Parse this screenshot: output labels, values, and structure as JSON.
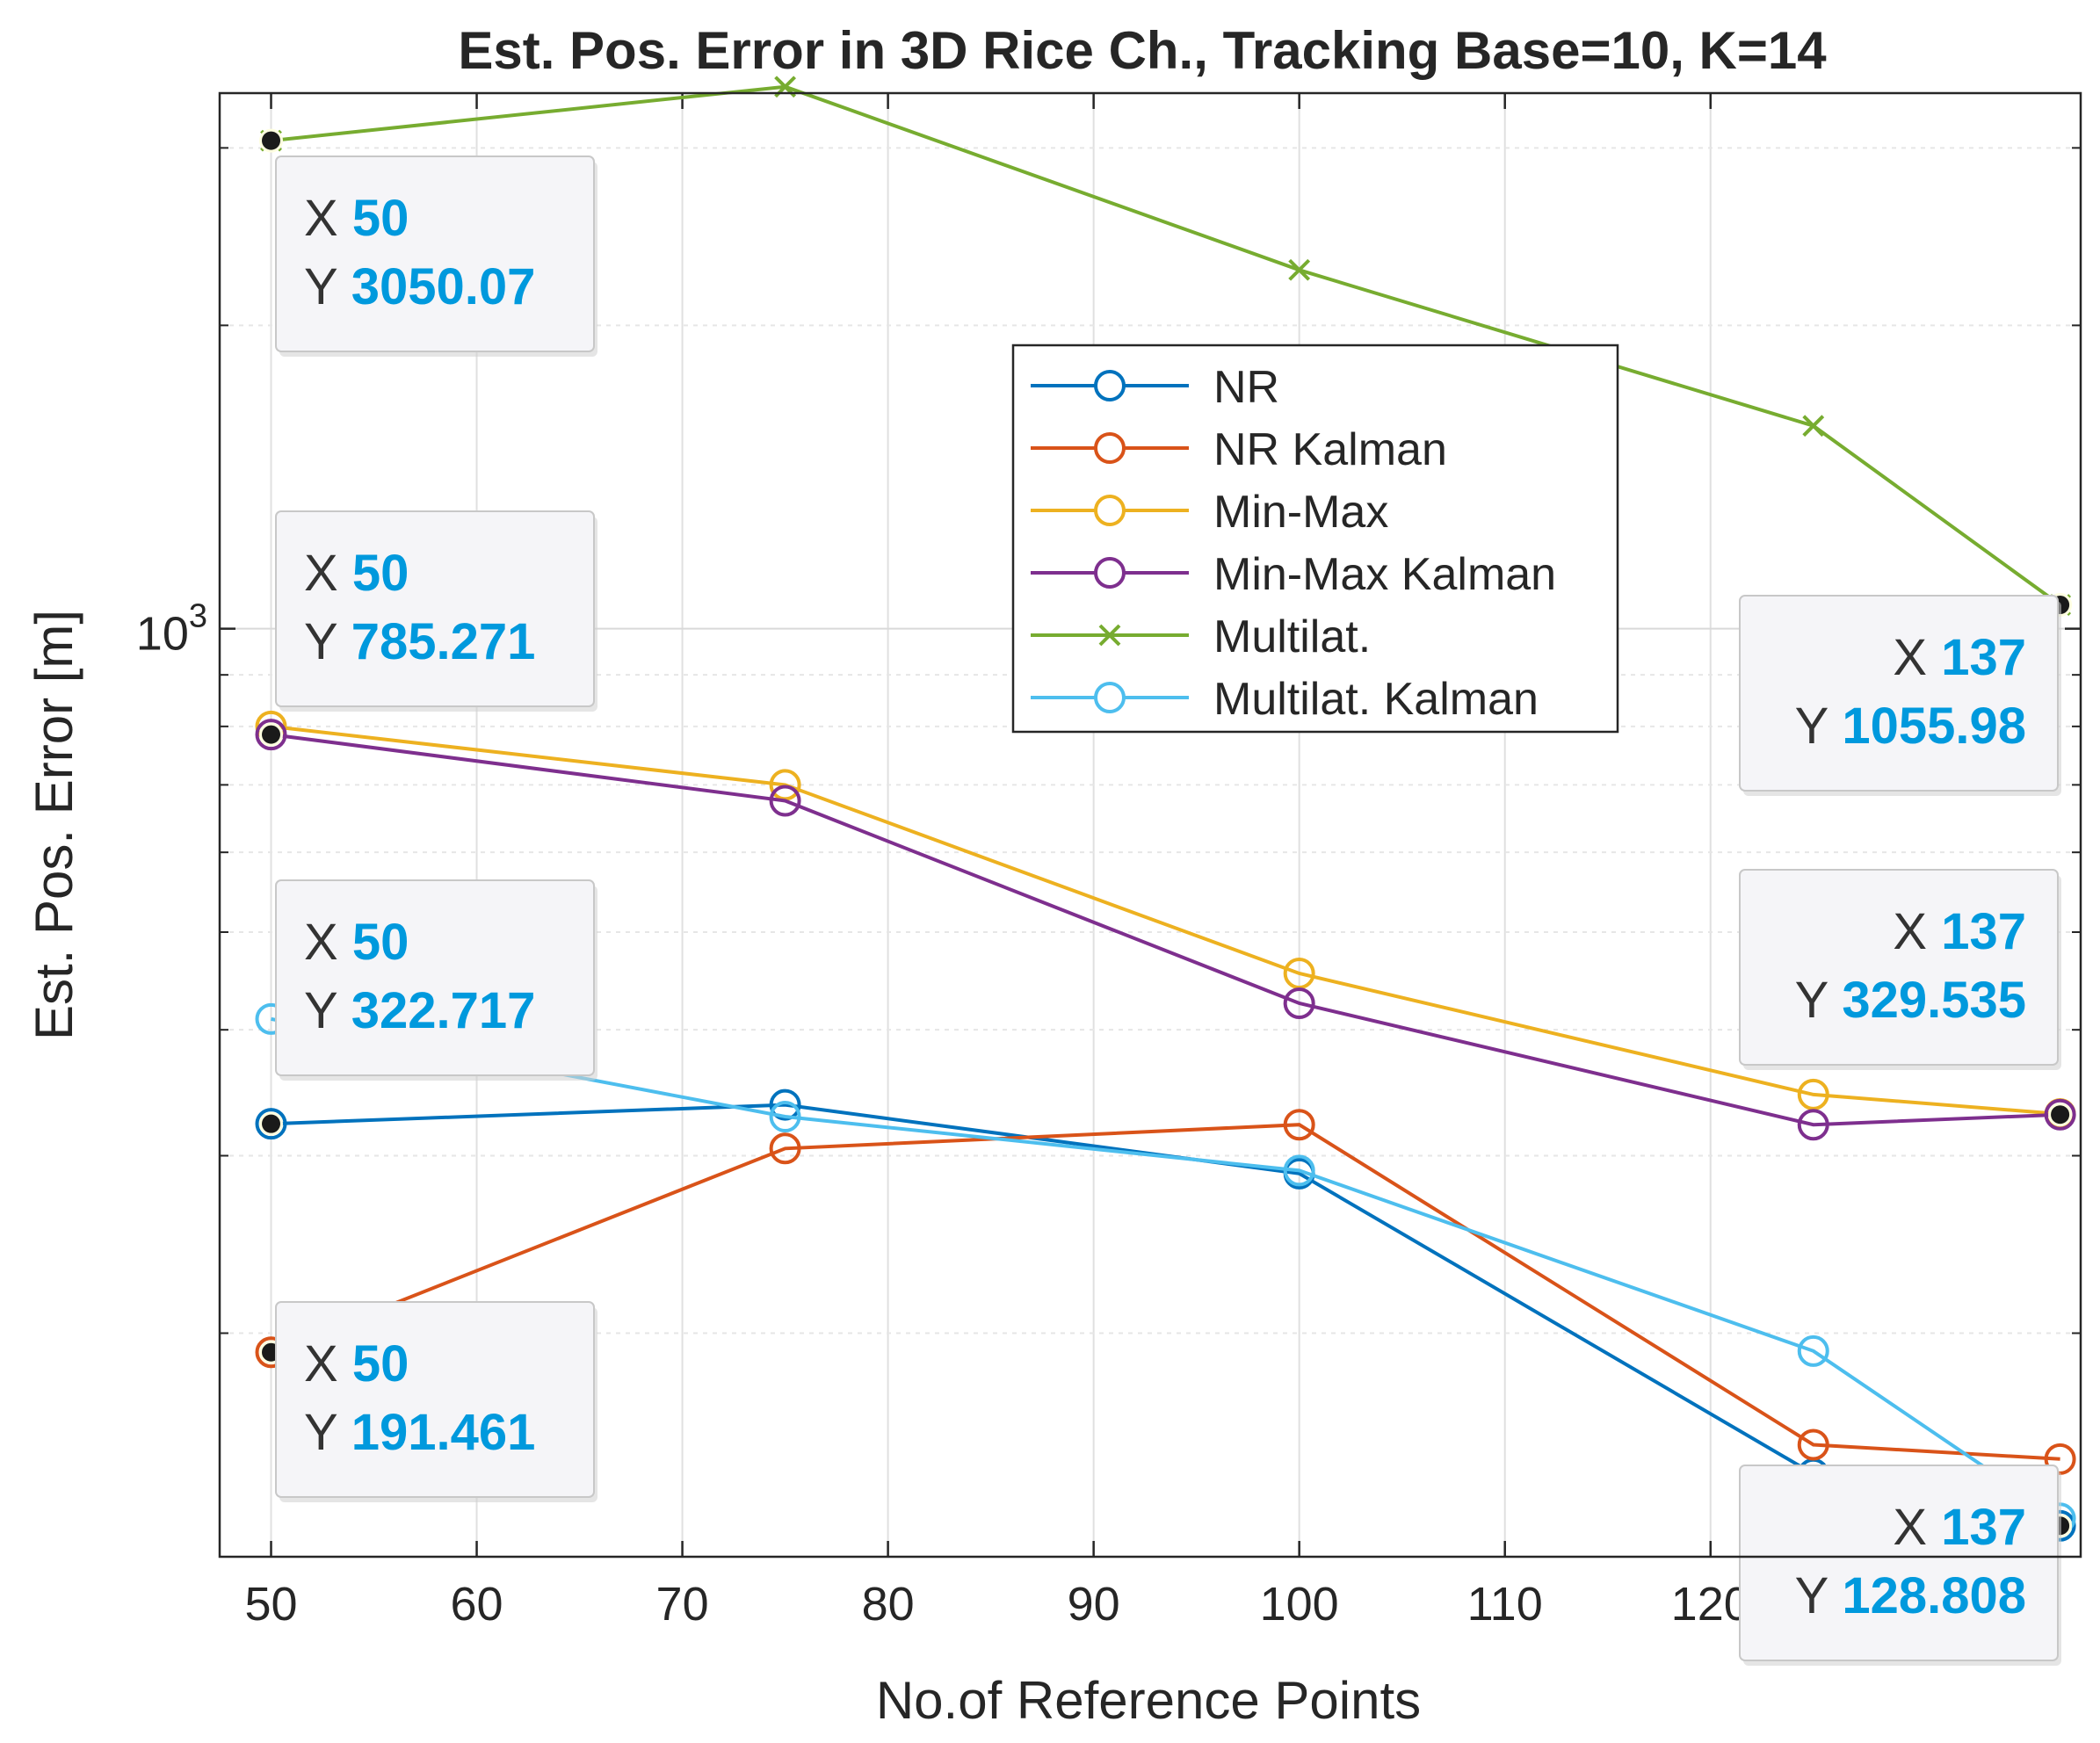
{
  "chart_data": {
    "type": "line",
    "title": "Est. Pos. Error in 3D Rice Ch., Tracking Base=10, K=14",
    "xlabel": "No.of Reference Points",
    "ylabel": "Est. Pos. Error [m]",
    "yscale": "log",
    "xlim": [
      47.5,
      138
    ],
    "ylim": [
      120,
      3400
    ],
    "xticks": [
      50,
      60,
      70,
      80,
      90,
      100,
      110,
      120
    ],
    "xtick_labels": [
      "50",
      "60",
      "70",
      "80",
      "90",
      "100",
      "110",
      "120"
    ],
    "ytick_label": {
      "base": "10",
      "exponent": "3",
      "value": 1000
    },
    "grid": true,
    "legend_position": "center-right",
    "x": [
      50,
      75,
      100,
      125,
      137
    ],
    "series": [
      {
        "name": "NR",
        "color": "#0072BD",
        "marker": "circle",
        "values": [
          322.7,
          337,
          288,
          145,
          128.8
        ]
      },
      {
        "name": "NR Kalman",
        "color": "#D95319",
        "marker": "circle",
        "values": [
          191.461,
          305,
          322,
          155,
          150
        ]
      },
      {
        "name": "Min-Max",
        "color": "#EDB120",
        "marker": "circle",
        "values": [
          800,
          700,
          455,
          345,
          330
        ]
      },
      {
        "name": "Min-Max Kalman",
        "color": "#7E2F8E",
        "marker": "circle",
        "values": [
          785.271,
          675,
          425,
          322,
          329.535
        ]
      },
      {
        "name": "Multilat.",
        "color": "#77AC30",
        "marker": "x",
        "values": [
          3050.07,
          3450,
          2270,
          1590,
          1055.98
        ]
      },
      {
        "name": "Multilat. Kalman",
        "color": "#4DBEEE",
        "marker": "circle",
        "values": [
          410,
          328,
          290,
          192,
          131
        ]
      }
    ],
    "data_tips": [
      {
        "x_label": "X",
        "x_value": "50",
        "y_label": "Y",
        "y_value": "3050.07",
        "x": 50,
        "y": 3050.07
      },
      {
        "x_label": "X",
        "x_value": "50",
        "y_label": "Y",
        "y_value": "785.271",
        "x": 50,
        "y": 785.271
      },
      {
        "x_label": "X",
        "x_value": "50",
        "y_label": "Y",
        "y_value": "322.717",
        "x": 50,
        "y": 322.717
      },
      {
        "x_label": "X",
        "x_value": "50",
        "y_label": "Y",
        "y_value": "191.461",
        "x": 50,
        "y": 191.461
      },
      {
        "x_label": "X",
        "x_value": "137",
        "y_label": "Y",
        "y_value": "1055.98",
        "x": 137,
        "y": 1055.98
      },
      {
        "x_label": "X",
        "x_value": "137",
        "y_label": "Y",
        "y_value": "329.535",
        "x": 137,
        "y": 329.535
      },
      {
        "x_label": "X",
        "x_value": "137",
        "y_label": "Y",
        "y_value": "128.808",
        "x": 137,
        "y": 128.808
      }
    ],
    "datatip_value_color": "#0099DD"
  }
}
